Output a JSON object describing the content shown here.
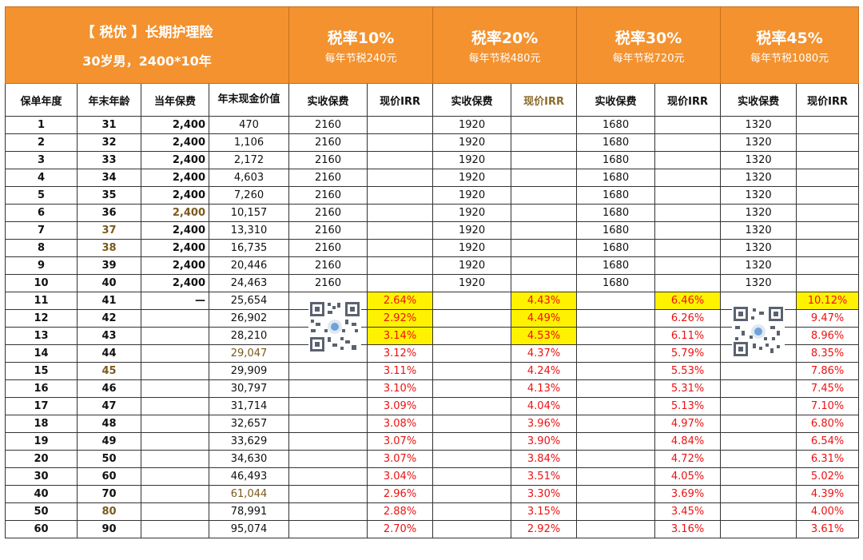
{
  "product": {
    "title": "【 税优 】长期护理险",
    "subtitle": "30岁男，2400*10年"
  },
  "tax_groups": [
    {
      "rate_label": "税率10%",
      "saving_label": "每年节税240元"
    },
    {
      "rate_label": "税率20%",
      "saving_label": "每年节税480元"
    },
    {
      "rate_label": "税率30%",
      "saving_label": "每年节税720元"
    },
    {
      "rate_label": "税率45%",
      "saving_label": "每年节税1080元"
    }
  ],
  "column_headers": [
    "保单年度",
    "年末年龄",
    "当年保费",
    "年末现金价值",
    "实收保费",
    "现价IRR",
    "实收保费",
    "现价IRR",
    "实收保费",
    "现价IRR",
    "实收保费",
    "现价IRR"
  ],
  "highlight_color": "#fff200",
  "header_color": "#f3922f",
  "irr_color": "#e11111",
  "qr_codes": [
    "qr-code-icon",
    "qr-code-icon"
  ],
  "rows": [
    [
      "1",
      "31",
      "2,400",
      "470",
      "2160",
      "",
      "1920",
      "",
      "1680",
      "",
      "1320",
      ""
    ],
    [
      "2",
      "32",
      "2,400",
      "1,106",
      "2160",
      "",
      "1920",
      "",
      "1680",
      "",
      "1320",
      ""
    ],
    [
      "3",
      "33",
      "2,400",
      "2,172",
      "2160",
      "",
      "1920",
      "",
      "1680",
      "",
      "1320",
      ""
    ],
    [
      "4",
      "34",
      "2,400",
      "4,603",
      "2160",
      "",
      "1920",
      "",
      "1680",
      "",
      "1320",
      ""
    ],
    [
      "5",
      "35",
      "2,400",
      "7,260",
      "2160",
      "",
      "1920",
      "",
      "1680",
      "",
      "1320",
      ""
    ],
    [
      "6",
      "36",
      "2,400",
      "10,157",
      "2160",
      "",
      "1920",
      "",
      "1680",
      "",
      "1320",
      ""
    ],
    [
      "7",
      "37",
      "2,400",
      "13,310",
      "2160",
      "",
      "1920",
      "",
      "1680",
      "",
      "1320",
      ""
    ],
    [
      "8",
      "38",
      "2,400",
      "16,735",
      "2160",
      "",
      "1920",
      "",
      "1680",
      "",
      "1320",
      ""
    ],
    [
      "9",
      "39",
      "2,400",
      "20,446",
      "2160",
      "",
      "1920",
      "",
      "1680",
      "",
      "1320",
      ""
    ],
    [
      "10",
      "40",
      "2,400",
      "24,463",
      "2160",
      "",
      "1920",
      "",
      "1680",
      "",
      "1320",
      ""
    ],
    [
      "11",
      "41",
      "—",
      "25,654",
      "",
      "2.64%",
      "",
      "4.43%",
      "",
      "6.46%",
      "",
      "10.12%"
    ],
    [
      "12",
      "42",
      "",
      "26,902",
      "",
      "2.92%",
      "",
      "4.49%",
      "",
      "6.26%",
      "",
      "9.47%"
    ],
    [
      "13",
      "43",
      "",
      "28,210",
      "",
      "3.14%",
      "",
      "4.53%",
      "",
      "6.11%",
      "",
      "8.96%"
    ],
    [
      "14",
      "44",
      "",
      "29,047",
      "",
      "3.12%",
      "",
      "4.37%",
      "",
      "5.79%",
      "",
      "8.35%"
    ],
    [
      "15",
      "45",
      "",
      "29,909",
      "",
      "3.11%",
      "",
      "4.24%",
      "",
      "5.53%",
      "",
      "7.86%"
    ],
    [
      "16",
      "46",
      "",
      "30,797",
      "",
      "3.10%",
      "",
      "4.13%",
      "",
      "5.31%",
      "",
      "7.45%"
    ],
    [
      "17",
      "47",
      "",
      "31,714",
      "",
      "3.09%",
      "",
      "4.04%",
      "",
      "5.13%",
      "",
      "7.10%"
    ],
    [
      "18",
      "48",
      "",
      "32,657",
      "",
      "3.08%",
      "",
      "3.96%",
      "",
      "4.97%",
      "",
      "6.80%"
    ],
    [
      "19",
      "49",
      "",
      "33,629",
      "",
      "3.07%",
      "",
      "3.90%",
      "",
      "4.84%",
      "",
      "6.54%"
    ],
    [
      "20",
      "50",
      "",
      "34,630",
      "",
      "3.07%",
      "",
      "3.84%",
      "",
      "4.72%",
      "",
      "6.31%"
    ],
    [
      "30",
      "60",
      "",
      "46,493",
      "",
      "3.04%",
      "",
      "3.51%",
      "",
      "4.05%",
      "",
      "5.02%"
    ],
    [
      "40",
      "70",
      "",
      "61,044",
      "",
      "2.96%",
      "",
      "3.30%",
      "",
      "3.69%",
      "",
      "4.39%"
    ],
    [
      "50",
      "80",
      "",
      "78,991",
      "",
      "2.88%",
      "",
      "3.15%",
      "",
      "3.45%",
      "",
      "4.00%"
    ],
    [
      "60",
      "90",
      "",
      "95,074",
      "",
      "2.70%",
      "",
      "2.92%",
      "",
      "3.16%",
      "",
      "3.61%"
    ]
  ]
}
